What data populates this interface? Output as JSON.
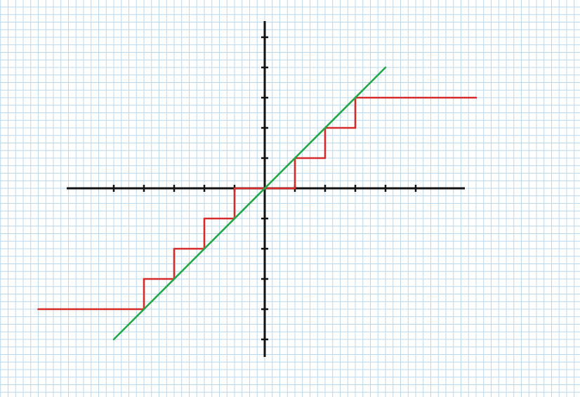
{
  "chart_data": {
    "type": "line",
    "grid": true,
    "xlim": [
      -7.5,
      6.5
    ],
    "ylim": [
      -5.5,
      5.5
    ],
    "x_ticks": [
      -5,
      -4,
      -3,
      -2,
      -1,
      1,
      2,
      3,
      4,
      5
    ],
    "y_ticks": [
      -5,
      -4,
      -3,
      -2,
      -1,
      1,
      2,
      3,
      4,
      5
    ],
    "series": [
      {
        "color": "#d42a2a",
        "style": "step",
        "points": [
          [
            -7.5,
            -4
          ],
          [
            -4,
            -4
          ],
          [
            -4,
            -3
          ],
          [
            -3,
            -3
          ],
          [
            -3,
            -2
          ],
          [
            -2,
            -2
          ],
          [
            -2,
            -1
          ],
          [
            -1,
            -1
          ],
          [
            -1,
            0
          ],
          [
            1,
            0
          ],
          [
            1,
            1
          ],
          [
            2,
            1
          ],
          [
            2,
            2
          ],
          [
            3,
            2
          ],
          [
            3,
            3
          ],
          [
            5,
            3
          ],
          [
            7,
            3
          ]
        ]
      },
      {
        "color": "#22a84a",
        "style": "line",
        "points": [
          [
            -5,
            -5
          ],
          [
            4,
            4
          ]
        ]
      }
    ]
  }
}
